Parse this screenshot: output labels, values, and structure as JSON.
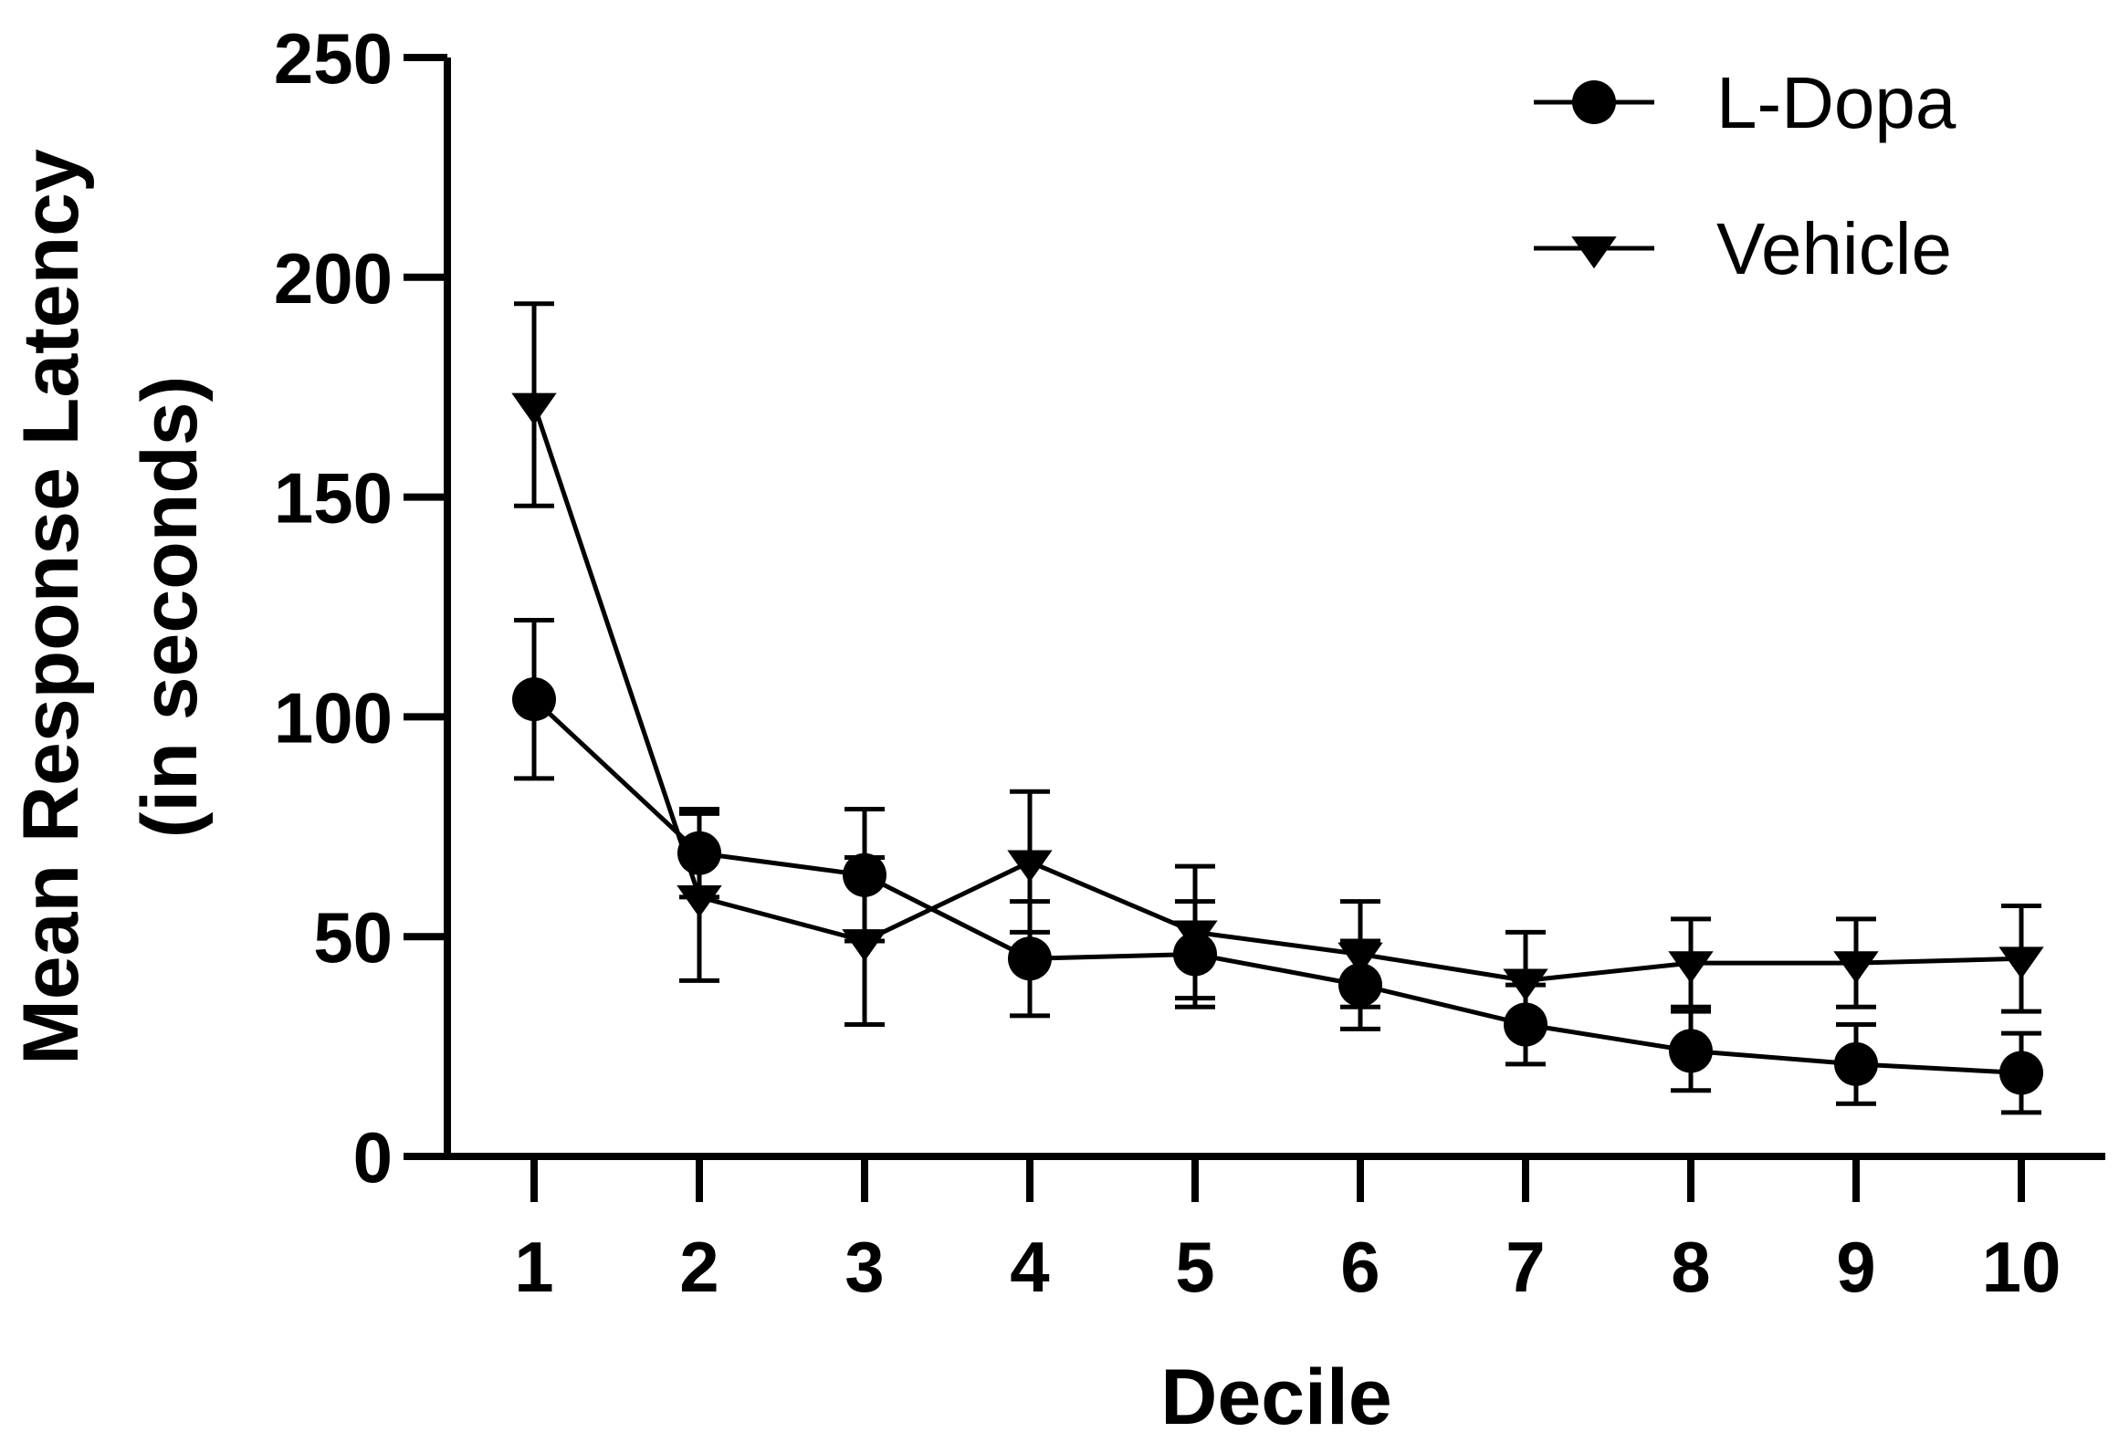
{
  "chart_data": {
    "type": "line",
    "x": [
      1,
      2,
      3,
      4,
      5,
      6,
      7,
      8,
      9,
      10
    ],
    "series": [
      {
        "name": "L-Dopa",
        "marker": "circle",
        "values": [
          104,
          69,
          64,
          45,
          46,
          39,
          30,
          24,
          21,
          19
        ],
        "error": [
          18,
          10,
          15,
          13,
          12,
          10,
          9,
          9,
          9,
          9
        ]
      },
      {
        "name": "Vehicle",
        "marker": "triangle-down",
        "values": [
          171,
          59,
          49,
          67,
          51,
          46,
          40,
          44,
          44,
          45
        ],
        "error": [
          23,
          19,
          19,
          16,
          15,
          12,
          11,
          10,
          10,
          12
        ]
      }
    ],
    "xlabel": "Decile",
    "ylabel_lines": [
      "Mean Response Latency",
      "(in seconds)"
    ],
    "ylim": [
      0,
      250
    ],
    "yticks": [
      0,
      50,
      100,
      150,
      200,
      250
    ],
    "xticks": [
      1,
      2,
      3,
      4,
      5,
      6,
      7,
      8,
      9,
      10
    ],
    "grid": false,
    "legend_position": "top-right",
    "color": "#000000"
  }
}
